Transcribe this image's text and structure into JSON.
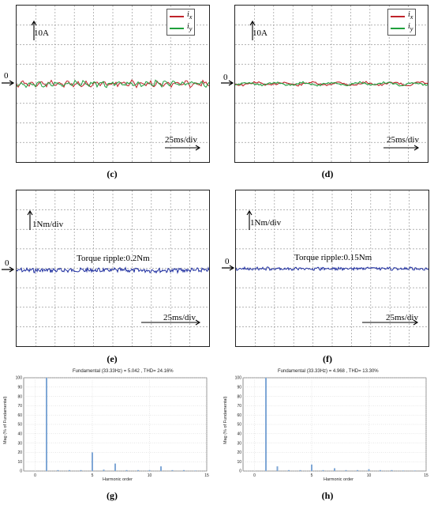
{
  "colors": {
    "ix": "#c0232a",
    "iy": "#1ea03c",
    "torque": "#1f2fa0",
    "bar": "#7fa7d6"
  },
  "labels": {
    "c": "(c)",
    "d": "(d)",
    "e": "(e)",
    "f": "(f)",
    "g": "(g)",
    "h": "(h)",
    "zero": "0",
    "current_scale": "10A",
    "torque_scale": "1Nm/div",
    "time_scale": "25ms/div",
    "legend_ix": "i",
    "legend_ix_sub": "x",
    "legend_iy": "i",
    "legend_iy_sub": "y",
    "ripple_e": "Torque ripple:0.2Nm",
    "ripple_f": "Torque ripple:0.15Nm"
  },
  "chart_data": [
    {
      "panel": "c",
      "type": "line",
      "series": [
        {
          "name": "ix"
        },
        {
          "name": "iy"
        }
      ],
      "xlabel": "25ms/div",
      "ylabel": "10A"
    },
    {
      "panel": "d",
      "type": "line",
      "series": [
        {
          "name": "ix"
        },
        {
          "name": "iy"
        }
      ],
      "xlabel": "25ms/div",
      "ylabel": "10A"
    },
    {
      "panel": "e",
      "type": "line",
      "annotation": "Torque ripple:0.2Nm",
      "xlabel": "25ms/div",
      "ylabel": "1Nm/div"
    },
    {
      "panel": "f",
      "type": "line",
      "annotation": "Torque ripple:0.15Nm",
      "xlabel": "25ms/div",
      "ylabel": "1Nm/div"
    },
    {
      "panel": "g",
      "type": "bar",
      "title": "Fundamental (33.33Hz) = 5.042 , THD= 24.16%",
      "xlabel": "Harmonic order",
      "ylabel": "Mag (% of Fundamental)",
      "xlim": [
        -1,
        15
      ],
      "ylim": [
        0,
        100
      ],
      "xticks": [
        0,
        5,
        10,
        15
      ],
      "yticks": [
        0,
        10,
        20,
        30,
        40,
        50,
        60,
        70,
        80,
        90,
        100
      ],
      "harmonics": [
        1,
        2,
        3,
        4,
        5,
        6,
        7,
        8,
        9,
        10,
        11,
        12,
        13,
        14
      ],
      "values": [
        100,
        1,
        1,
        1,
        20,
        1.5,
        8,
        1,
        1,
        1,
        5,
        1,
        1,
        0.5
      ]
    },
    {
      "panel": "h",
      "type": "bar",
      "title": "Fundamental (33.33Hz) = 4.968 , THD= 13.30%",
      "xlabel": "Harmonic order",
      "ylabel": "Mag (% of Fundamental)",
      "xlim": [
        -1,
        15
      ],
      "ylim": [
        0,
        100
      ],
      "xticks": [
        0,
        5,
        10,
        15
      ],
      "yticks": [
        0,
        10,
        20,
        30,
        40,
        50,
        60,
        70,
        80,
        90,
        100
      ],
      "harmonics": [
        1,
        2,
        3,
        4,
        5,
        6,
        7,
        8,
        9,
        10,
        11,
        12,
        13,
        14
      ],
      "values": [
        100,
        5,
        1,
        1,
        7,
        1,
        3,
        1,
        1,
        2,
        1,
        1,
        0.5,
        0.5
      ]
    }
  ]
}
